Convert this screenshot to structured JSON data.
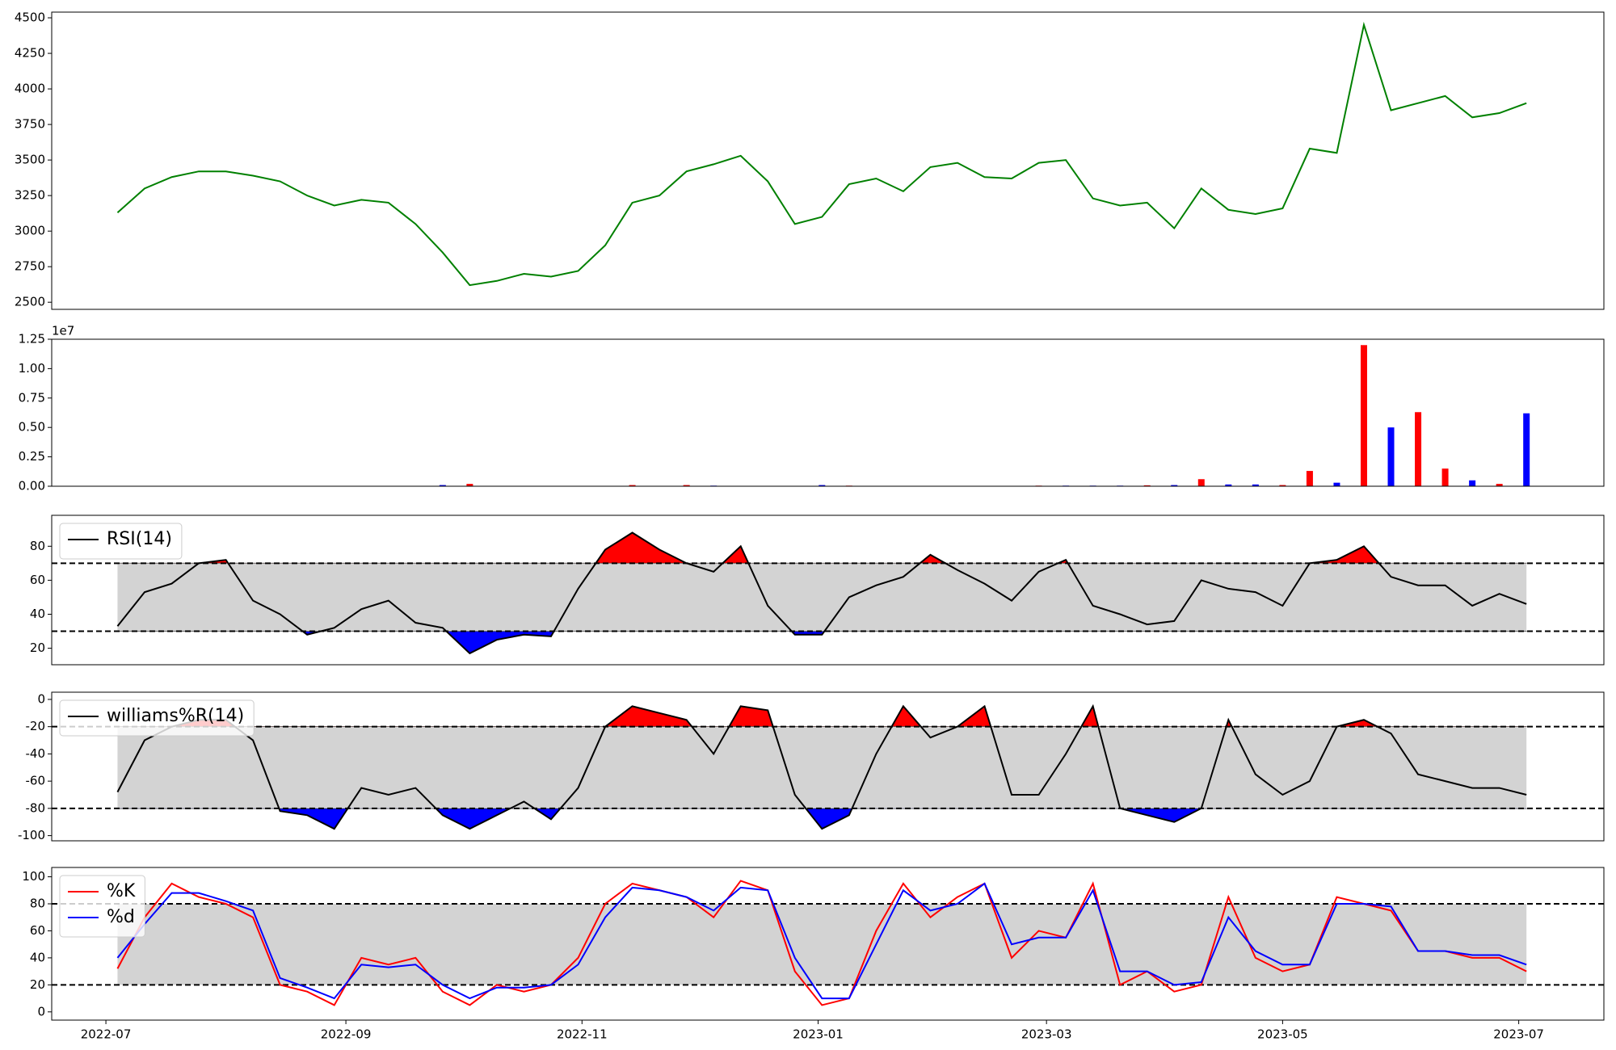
{
  "chart_data": [
    {
      "type": "line",
      "x": [
        "2022-07-04",
        "2022-07-11",
        "2022-07-18",
        "2022-07-25",
        "2022-08-01",
        "2022-08-08",
        "2022-08-15",
        "2022-08-22",
        "2022-08-29",
        "2022-09-05",
        "2022-09-12",
        "2022-09-19",
        "2022-09-26",
        "2022-10-03",
        "2022-10-10",
        "2022-10-17",
        "2022-10-24",
        "2022-10-31",
        "2022-11-07",
        "2022-11-14",
        "2022-11-21",
        "2022-11-28",
        "2022-12-05",
        "2022-12-12",
        "2022-12-19",
        "2022-12-26",
        "2023-01-02",
        "2023-01-09",
        "2023-01-16",
        "2023-01-23",
        "2023-01-30",
        "2023-02-06",
        "2023-02-13",
        "2023-02-20",
        "2023-02-27",
        "2023-03-06",
        "2023-03-13",
        "2023-03-20",
        "2023-03-27",
        "2023-04-03",
        "2023-04-10",
        "2023-04-17",
        "2023-04-24",
        "2023-05-01",
        "2023-05-08",
        "2023-05-15",
        "2023-05-22",
        "2023-05-29",
        "2023-06-05",
        "2023-06-12",
        "2023-06-19",
        "2023-06-26",
        "2023-07-03"
      ],
      "series": [
        {
          "color": "green",
          "values": [
            3130,
            3300,
            3380,
            3420,
            3420,
            3390,
            3350,
            3250,
            3180,
            3220,
            3200,
            3050,
            2850,
            2620,
            2650,
            2700,
            2680,
            2720,
            2900,
            3200,
            3250,
            3420,
            3470,
            3530,
            3350,
            3050,
            3100,
            3330,
            3370,
            3280,
            3450,
            3480,
            3380,
            3370,
            3480,
            3500,
            3230,
            3180,
            3200,
            3020,
            3300,
            3150,
            3120,
            3160,
            3580,
            3550,
            4450,
            3850,
            3900,
            3950,
            3800,
            3830,
            3900
          ]
        }
      ],
      "xlim": [
        "2022-06-17",
        "2023-07-23"
      ],
      "ylim": [
        2450,
        4540
      ],
      "yticks": [
        2500,
        2750,
        3000,
        3250,
        3500,
        3750,
        4000,
        4250,
        4500
      ]
    },
    {
      "type": "bar",
      "x": [
        "2022-07-04",
        "2022-07-11",
        "2022-07-18",
        "2022-07-25",
        "2022-08-01",
        "2022-08-08",
        "2022-08-15",
        "2022-08-22",
        "2022-08-29",
        "2022-09-05",
        "2022-09-12",
        "2022-09-19",
        "2022-09-26",
        "2022-10-03",
        "2022-10-10",
        "2022-10-17",
        "2022-10-24",
        "2022-10-31",
        "2022-11-07",
        "2022-11-14",
        "2022-11-21",
        "2022-11-28",
        "2022-12-05",
        "2022-12-12",
        "2022-12-19",
        "2022-12-26",
        "2023-01-02",
        "2023-01-09",
        "2023-01-16",
        "2023-01-23",
        "2023-01-30",
        "2023-02-06",
        "2023-02-13",
        "2023-02-20",
        "2023-02-27",
        "2023-03-06",
        "2023-03-13",
        "2023-03-20",
        "2023-03-27",
        "2023-04-03",
        "2023-04-10",
        "2023-04-17",
        "2023-04-24",
        "2023-05-01",
        "2023-05-08",
        "2023-05-15",
        "2023-05-22",
        "2023-05-29",
        "2023-06-05",
        "2023-06-12",
        "2023-06-19",
        "2023-06-26",
        "2023-07-03"
      ],
      "values": [
        20000,
        20000,
        20000,
        20000,
        20000,
        20000,
        20000,
        20000,
        20000,
        20000,
        20000,
        20000,
        100000,
        200000,
        20000,
        20000,
        20000,
        20000,
        20000,
        100000,
        20000,
        100000,
        50000,
        20000,
        20000,
        20000,
        100000,
        50000,
        20000,
        20000,
        20000,
        30000,
        20000,
        20000,
        50000,
        50000,
        50000,
        50000,
        80000,
        100000,
        600000,
        150000,
        150000,
        100000,
        1300000,
        300000,
        12000000,
        5000000,
        6300000,
        1500000,
        500000,
        200000,
        6200000
      ],
      "colors": [
        "red",
        "blue",
        "red",
        "red",
        "blue",
        "blue",
        "blue",
        "blue",
        "red",
        "blue",
        "blue",
        "blue",
        "blue",
        "red",
        "red",
        "blue",
        "red",
        "red",
        "red",
        "red",
        "blue",
        "red",
        "blue",
        "red",
        "blue",
        "blue",
        "blue",
        "red",
        "blue",
        "red",
        "red",
        "blue",
        "blue",
        "red",
        "red",
        "blue",
        "blue",
        "blue",
        "red",
        "blue",
        "red",
        "blue",
        "blue",
        "red",
        "red",
        "blue",
        "red",
        "blue",
        "red",
        "red",
        "blue",
        "red",
        "blue"
      ],
      "offset_label": "1e7",
      "xlim": [
        "2022-06-17",
        "2023-07-23"
      ],
      "ylim": [
        0,
        12500000
      ],
      "yticks": [
        {
          "value": 0,
          "label": "0.00"
        },
        {
          "value": 2500000,
          "label": "0.25"
        },
        {
          "value": 5000000,
          "label": "0.50"
        },
        {
          "value": 7500000,
          "label": "0.75"
        },
        {
          "value": 10000000,
          "label": "1.00"
        },
        {
          "value": 12500000,
          "label": "1.25"
        }
      ]
    },
    {
      "type": "oscillator",
      "x": [
        "2022-07-04",
        "2022-07-11",
        "2022-07-18",
        "2022-07-25",
        "2022-08-01",
        "2022-08-08",
        "2022-08-15",
        "2022-08-22",
        "2022-08-29",
        "2022-09-05",
        "2022-09-12",
        "2022-09-19",
        "2022-09-26",
        "2022-10-03",
        "2022-10-10",
        "2022-10-17",
        "2022-10-24",
        "2022-10-31",
        "2022-11-07",
        "2022-11-14",
        "2022-11-21",
        "2022-11-28",
        "2022-12-05",
        "2022-12-12",
        "2022-12-19",
        "2022-12-26",
        "2023-01-02",
        "2023-01-09",
        "2023-01-16",
        "2023-01-23",
        "2023-01-30",
        "2023-02-06",
        "2023-02-13",
        "2023-02-20",
        "2023-02-27",
        "2023-03-06",
        "2023-03-13",
        "2023-03-20",
        "2023-03-27",
        "2023-04-03",
        "2023-04-10",
        "2023-04-17",
        "2023-04-24",
        "2023-05-01",
        "2023-05-08",
        "2023-05-15",
        "2023-05-22",
        "2023-05-29",
        "2023-06-05",
        "2023-06-12",
        "2023-06-19",
        "2023-06-26",
        "2023-07-03"
      ],
      "series": [
        {
          "name": "RSI(14)",
          "color": "black",
          "values": [
            33,
            53,
            58,
            70,
            72,
            48,
            40,
            28,
            32,
            43,
            48,
            35,
            32,
            17,
            25,
            28,
            27,
            55,
            78,
            88,
            78,
            70,
            65,
            80,
            45,
            28,
            28,
            50,
            57,
            62,
            75,
            66,
            58,
            48,
            65,
            72,
            45,
            40,
            34,
            36,
            60,
            55,
            53,
            45,
            70,
            72,
            80,
            62,
            57,
            57,
            45,
            52,
            46
          ]
        }
      ],
      "upper": 70,
      "lower": 30,
      "upper_color": "red",
      "lower_color": "blue",
      "band_color": "lightgray",
      "legend": "upper left",
      "xlim": [
        "2022-06-17",
        "2023-07-23"
      ],
      "ylim": [
        10.3,
        98.2
      ],
      "yticks": [
        20,
        40,
        60,
        80
      ]
    },
    {
      "type": "oscillator",
      "x": [
        "2022-07-04",
        "2022-07-11",
        "2022-07-18",
        "2022-07-25",
        "2022-08-01",
        "2022-08-08",
        "2022-08-15",
        "2022-08-22",
        "2022-08-29",
        "2022-09-05",
        "2022-09-12",
        "2022-09-19",
        "2022-09-26",
        "2022-10-03",
        "2022-10-10",
        "2022-10-17",
        "2022-10-24",
        "2022-10-31",
        "2022-11-07",
        "2022-11-14",
        "2022-11-21",
        "2022-11-28",
        "2022-12-05",
        "2022-12-12",
        "2022-12-19",
        "2022-12-26",
        "2023-01-02",
        "2023-01-09",
        "2023-01-16",
        "2023-01-23",
        "2023-01-30",
        "2023-02-06",
        "2023-02-13",
        "2023-02-20",
        "2023-02-27",
        "2023-03-06",
        "2023-03-13",
        "2023-03-20",
        "2023-03-27",
        "2023-04-03",
        "2023-04-10",
        "2023-04-17",
        "2023-04-24",
        "2023-05-01",
        "2023-05-08",
        "2023-05-15",
        "2023-05-22",
        "2023-05-29",
        "2023-06-05",
        "2023-06-12",
        "2023-06-19",
        "2023-06-26",
        "2023-07-03"
      ],
      "series": [
        {
          "name": "williams%R(14)",
          "color": "black",
          "values": [
            -68,
            -30,
            -20,
            -15,
            -15,
            -30,
            -82,
            -85,
            -95,
            -65,
            -70,
            -65,
            -85,
            -95,
            -85,
            -75,
            -88,
            -65,
            -20,
            -5,
            -10,
            -15,
            -40,
            -5,
            -8,
            -70,
            -95,
            -85,
            -40,
            -5,
            -28,
            -20,
            -5,
            -70,
            -70,
            -40,
            -5,
            -80,
            -85,
            -90,
            -80,
            -15,
            -55,
            -70,
            -60,
            -20,
            -15,
            -25,
            -55,
            -60,
            -65,
            -65,
            -70
          ]
        }
      ],
      "upper": -20,
      "lower": -80,
      "upper_color": "red",
      "lower_color": "blue",
      "band_color": "lightgray",
      "legend": "upper left",
      "xlim": [
        "2022-06-17",
        "2023-07-23"
      ],
      "ylim": [
        -103.8,
        5.3
      ],
      "yticks": [
        -100,
        -80,
        -60,
        -40,
        -20,
        0
      ]
    },
    {
      "type": "oscillator",
      "x": [
        "2022-07-04",
        "2022-07-11",
        "2022-07-18",
        "2022-07-25",
        "2022-08-01",
        "2022-08-08",
        "2022-08-15",
        "2022-08-22",
        "2022-08-29",
        "2022-09-05",
        "2022-09-12",
        "2022-09-19",
        "2022-09-26",
        "2022-10-03",
        "2022-10-10",
        "2022-10-17",
        "2022-10-24",
        "2022-10-31",
        "2022-11-07",
        "2022-11-14",
        "2022-11-21",
        "2022-11-28",
        "2022-12-05",
        "2022-12-12",
        "2022-12-19",
        "2022-12-26",
        "2023-01-02",
        "2023-01-09",
        "2023-01-16",
        "2023-01-23",
        "2023-01-30",
        "2023-02-06",
        "2023-02-13",
        "2023-02-20",
        "2023-02-27",
        "2023-03-06",
        "2023-03-13",
        "2023-03-20",
        "2023-03-27",
        "2023-04-03",
        "2023-04-10",
        "2023-04-17",
        "2023-04-24",
        "2023-05-01",
        "2023-05-08",
        "2023-05-15",
        "2023-05-22",
        "2023-05-29",
        "2023-06-05",
        "2023-06-12",
        "2023-06-19",
        "2023-06-26",
        "2023-07-03"
      ],
      "series": [
        {
          "name": "%K",
          "color": "red",
          "values": [
            32,
            70,
            95,
            85,
            80,
            70,
            20,
            15,
            5,
            40,
            35,
            40,
            15,
            5,
            20,
            15,
            20,
            40,
            80,
            95,
            90,
            85,
            70,
            97,
            90,
            30,
            5,
            10,
            60,
            95,
            70,
            85,
            95,
            40,
            60,
            55,
            95,
            20,
            30,
            15,
            20,
            85,
            40,
            30,
            35,
            85,
            80,
            75,
            45,
            45,
            40,
            40,
            30
          ]
        },
        {
          "name": "%d",
          "color": "blue",
          "values": [
            40,
            65,
            88,
            88,
            82,
            75,
            25,
            18,
            10,
            35,
            33,
            35,
            20,
            10,
            18,
            18,
            20,
            35,
            70,
            92,
            90,
            85,
            75,
            92,
            90,
            40,
            10,
            10,
            50,
            90,
            75,
            80,
            95,
            50,
            55,
            55,
            90,
            30,
            30,
            20,
            22,
            70,
            45,
            35,
            35,
            80,
            80,
            78,
            45,
            45,
            42,
            42,
            35
          ]
        }
      ],
      "upper": 80,
      "lower": 20,
      "band_color": "lightgray",
      "legend": "upper left",
      "xlim": [
        "2022-06-17",
        "2023-07-23"
      ],
      "ylim": [
        -6.1,
        106.9
      ],
      "yticks": [
        0,
        20,
        40,
        60,
        80,
        100
      ],
      "xticks": [
        "2022-07",
        "2022-09",
        "2022-11",
        "2023-01",
        "2023-03",
        "2023-05",
        "2023-07"
      ]
    }
  ]
}
